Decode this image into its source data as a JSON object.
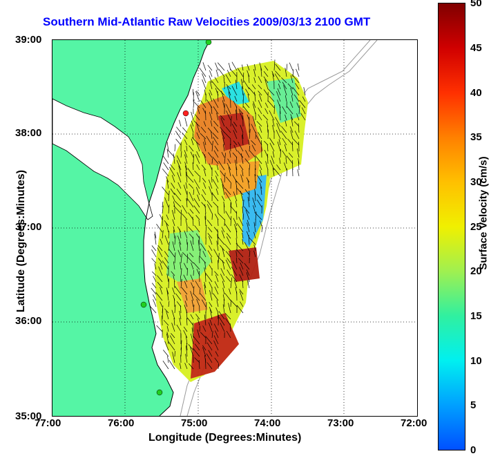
{
  "title": "Southern Mid-Atlantic Raw Velocities 2009/03/13 2100 GMT",
  "axes": {
    "xlabel": "Longitude (Degrees:Minutes)",
    "ylabel": "Latitude (Degrees:Minutes)",
    "xticks": [
      "77:00",
      "76:00",
      "75:00",
      "74:00",
      "73:00",
      "72:00"
    ],
    "yticks": [
      "39:00",
      "38:00",
      "37:00",
      "36:00",
      "35:00"
    ],
    "lon_range": [
      -77,
      -72
    ],
    "lat_range": [
      35,
      39
    ]
  },
  "colorbar": {
    "label": "Surface Velocity (cm/s)",
    "ticks": [
      "50",
      "45",
      "40",
      "35",
      "30",
      "25",
      "20",
      "15",
      "10",
      "5",
      "0"
    ],
    "range": [
      0,
      50
    ]
  },
  "colors": {
    "land": "#55f5a5",
    "title": "#0000ff",
    "vector": "#000000",
    "station_red": "#ff2020",
    "station_green": "#20d020"
  },
  "stations": [
    {
      "type": "red",
      "lon": -75.17,
      "lat": 38.25
    },
    {
      "type": "green",
      "lon": -74.97,
      "lat": 39.0
    },
    {
      "type": "green",
      "lon": -75.68,
      "lat": 36.18
    },
    {
      "type": "green",
      "lon": -75.55,
      "lat": 35.25
    }
  ]
}
